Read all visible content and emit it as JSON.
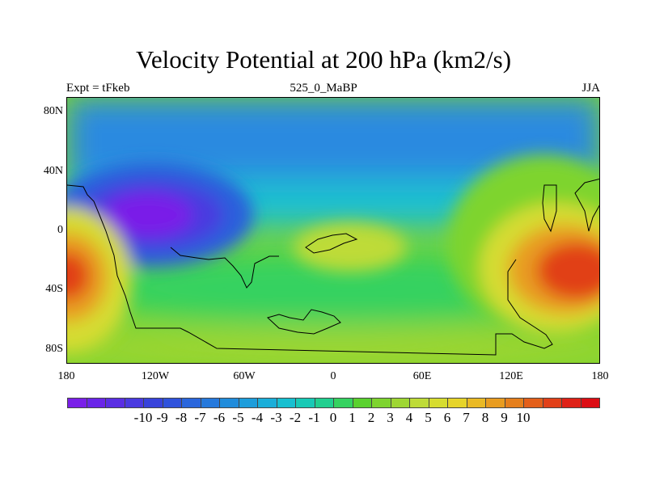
{
  "title": "Velocity Potential at 200 hPa (km2/s)",
  "left_label": "Expt = tFkeb",
  "center_label": "525_0_MaBP",
  "right_label": "JJA",
  "lat_ticks": [
    {
      "label": "80N",
      "value": 80
    },
    {
      "label": "40N",
      "value": 40
    },
    {
      "label": "0",
      "value": 0
    },
    {
      "label": "40S",
      "value": -40
    },
    {
      "label": "80S",
      "value": -80
    }
  ],
  "lon_ticks": [
    {
      "label": "180",
      "value": -180
    },
    {
      "label": "120W",
      "value": -120
    },
    {
      "label": "60W",
      "value": -60
    },
    {
      "label": "0",
      "value": 0
    },
    {
      "label": "60E",
      "value": 60
    },
    {
      "label": "120E",
      "value": 120
    },
    {
      "label": "180",
      "value": 180
    }
  ],
  "colorbar": {
    "labels": [
      "-10",
      "-9",
      "-8",
      "-7",
      "-6",
      "-5",
      "-4",
      "-3",
      "-2",
      "-1",
      "0",
      "1",
      "2",
      "3",
      "4",
      "5",
      "6",
      "7",
      "8",
      "9",
      "10"
    ],
    "colors": [
      "#7a1fe8",
      "#6a25e8",
      "#5a2ee3",
      "#4a3ae0",
      "#3843db",
      "#2f52dc",
      "#2a66dc",
      "#2679dc",
      "#208cdb",
      "#1d9ddb",
      "#1aaed9",
      "#17bfd0",
      "#18c9b5",
      "#21cf8f",
      "#35d260",
      "#5ad12e",
      "#7ed42f",
      "#9ed633",
      "#bedb38",
      "#d6dc30",
      "#e6d42a",
      "#e9b925",
      "#e89c20",
      "#e57f1c",
      "#e35f1a",
      "#e14019",
      "#df2117",
      "#dc0d14"
    ]
  },
  "field": {
    "background_value": 4.0,
    "centers": [
      {
        "name": "divergence-max-pacific-west",
        "lon": 162,
        "lat": -28,
        "value": 9.6
      },
      {
        "name": "divergence-max-wrap",
        "lon": -180,
        "lat": -30,
        "value": 7.5
      },
      {
        "name": "convergence-min-east-pacific",
        "lon": -128,
        "lat": 7,
        "value": -10.0
      },
      {
        "name": "north-polar-low",
        "lon": 0,
        "lat": 72,
        "value": -2.5
      }
    ]
  }
}
